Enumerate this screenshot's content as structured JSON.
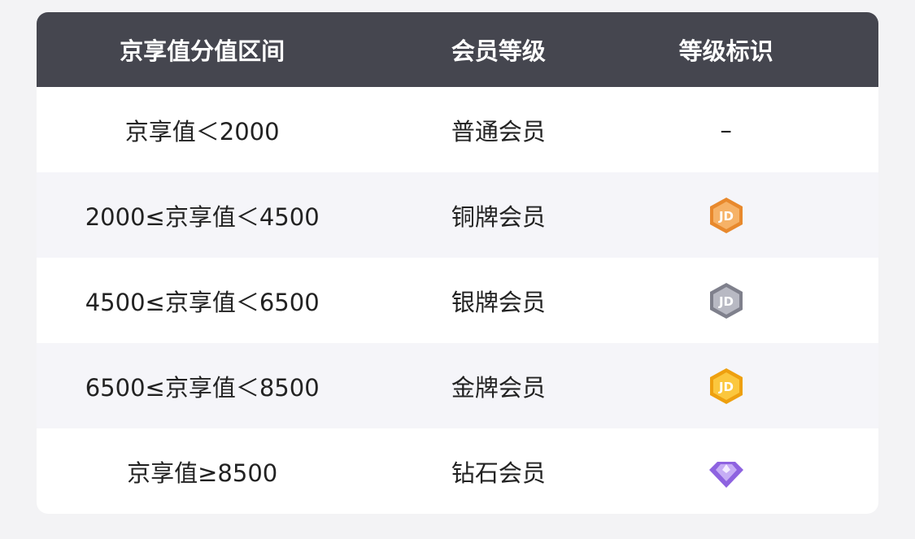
{
  "headers": [
    "京享值分值区间",
    "会员等级",
    "等级标识"
  ],
  "rows": [
    {
      "range": "京享值＜2000",
      "level": "普通会员",
      "badge": "–",
      "badge_icon": "none"
    },
    {
      "range": "2000≤京享值＜4500",
      "level": "铜牌会员",
      "badge_icon": "bronze-jd-badge-icon",
      "color": "#f0a04a"
    },
    {
      "range": "4500≤京享值＜6500",
      "level": "银牌会员",
      "badge_icon": "silver-jd-badge-icon",
      "color": "#9c9ca8"
    },
    {
      "range": "6500≤京享值＜8500",
      "level": "金牌会员",
      "badge_icon": "gold-jd-badge-icon",
      "color": "#f5b222"
    },
    {
      "range": "京享值≥8500",
      "level": "钻石会员",
      "badge_icon": "diamond-badge-icon",
      "color": "#9b74e6"
    }
  ]
}
